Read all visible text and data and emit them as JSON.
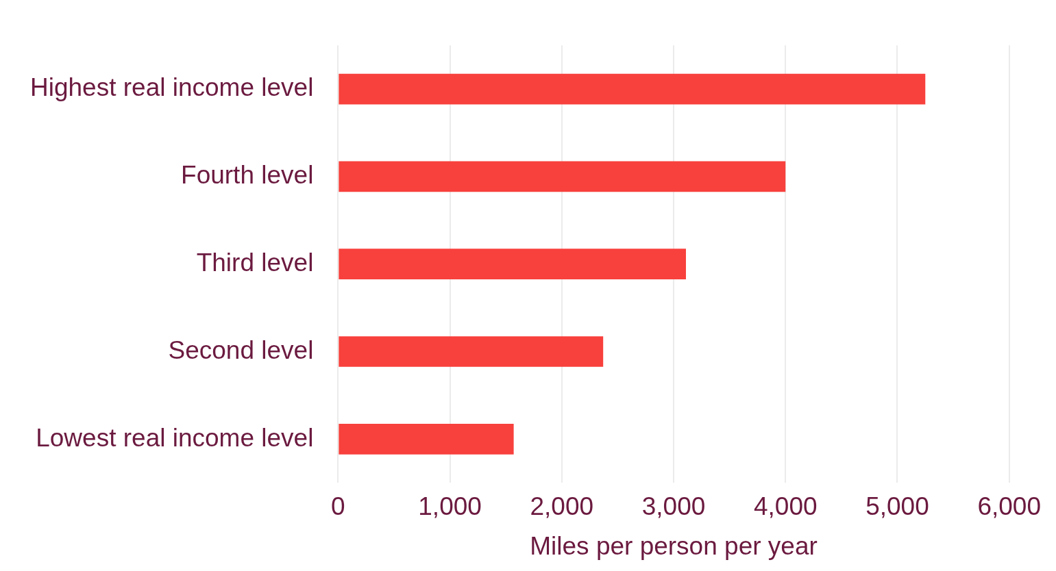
{
  "chart_data": {
    "type": "bar",
    "orientation": "horizontal",
    "xlabel": "Miles per person per year",
    "categories": [
      "Highest real income level",
      "Fourth level",
      "Third level",
      "Second level",
      "Lowest real income level"
    ],
    "values": [
      5250,
      4000,
      3110,
      2370,
      1570
    ],
    "color": "#f8403c",
    "xlim": [
      0,
      6000
    ],
    "xticks": [
      0,
      {
        "value": 1000,
        "label": "1,000"
      },
      {
        "value": 2000,
        "label": "2,000"
      },
      {
        "value": 3000,
        "label": "3,000"
      },
      {
        "value": 4000,
        "label": "4,000"
      },
      {
        "value": 5000,
        "label": "5,000"
      },
      {
        "value": 6000,
        "label": "6,000"
      }
    ],
    "grid": "x"
  }
}
